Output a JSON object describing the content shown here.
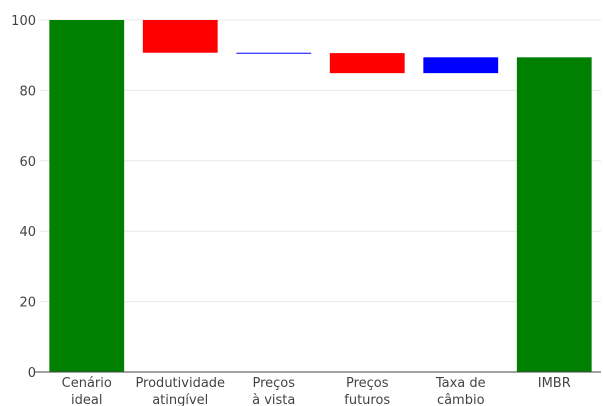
{
  "chart_data": {
    "type": "bar",
    "subtype": "waterfall",
    "title": "",
    "xlabel": "",
    "ylabel": "",
    "ylim": [
      0,
      100
    ],
    "yticks": [
      0,
      20,
      40,
      60,
      80,
      100
    ],
    "grid": true,
    "categories": [
      [
        "Cenário",
        "ideal"
      ],
      [
        "Produtividade",
        "atingível"
      ],
      [
        "Preços",
        "à vista"
      ],
      [
        "Preços",
        "futuros"
      ],
      [
        "Taxa de",
        "câmbio"
      ],
      [
        "IMBR"
      ]
    ],
    "bars": [
      {
        "start": 0,
        "end": 100,
        "color": "#008000"
      },
      {
        "start": 100,
        "end": 90.7,
        "color": "#ff0000"
      },
      {
        "start": 90.7,
        "end": 90.6,
        "color": "#0000ff"
      },
      {
        "start": 90.6,
        "end": 84.9,
        "color": "#ff0000"
      },
      {
        "start": 84.9,
        "end": 89.4,
        "color": "#0000ff"
      },
      {
        "start": 0,
        "end": 89.4,
        "color": "#008000"
      }
    ]
  }
}
